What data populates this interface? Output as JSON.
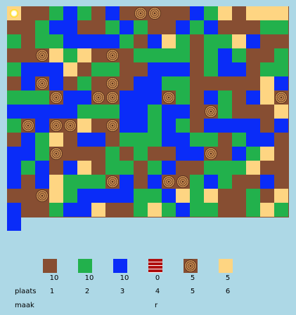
{
  "board": {
    "rows": [
      "P00121020330021505550",
      "01220012100212000111",
      "01122221025101152000",
      "03515030111101210011",
      "22250110022201220110",
      "23201030221100000521",
      "11322332223102102532",
      "22221112212203100051",
      "32335032212102222020",
      "21502201112211012202",
      "21300010100223021502",
      "12025011012001115002",
      "02511132023312100200",
      "03512222112515001052",
      "00122500151211001512"
    ],
    "legend": {
      "0": "empty",
      "1": "grass",
      "2": "water",
      "3": "log",
      "5": "sand",
      "P": "player"
    }
  },
  "palette": [
    {
      "name": "dirt-tile",
      "color": "#874e32",
      "count": "10",
      "place": "1"
    },
    {
      "name": "grass-tile",
      "color": "#22b14c",
      "count": "10",
      "place": "2"
    },
    {
      "name": "water-tile",
      "color": "#0a2cf8",
      "count": "10",
      "place": "3"
    },
    {
      "name": "brick-tile",
      "color": "#b01010",
      "count": "0",
      "place": "4"
    },
    {
      "name": "log-tile",
      "color": "#c98c50",
      "count": "5",
      "place": "5"
    },
    {
      "name": "sand-tile",
      "color": "#fed582",
      "count": "5",
      "place": "6"
    }
  ],
  "labels": {
    "plaats": "plaats",
    "maak": "maak",
    "maak_value": "r"
  }
}
